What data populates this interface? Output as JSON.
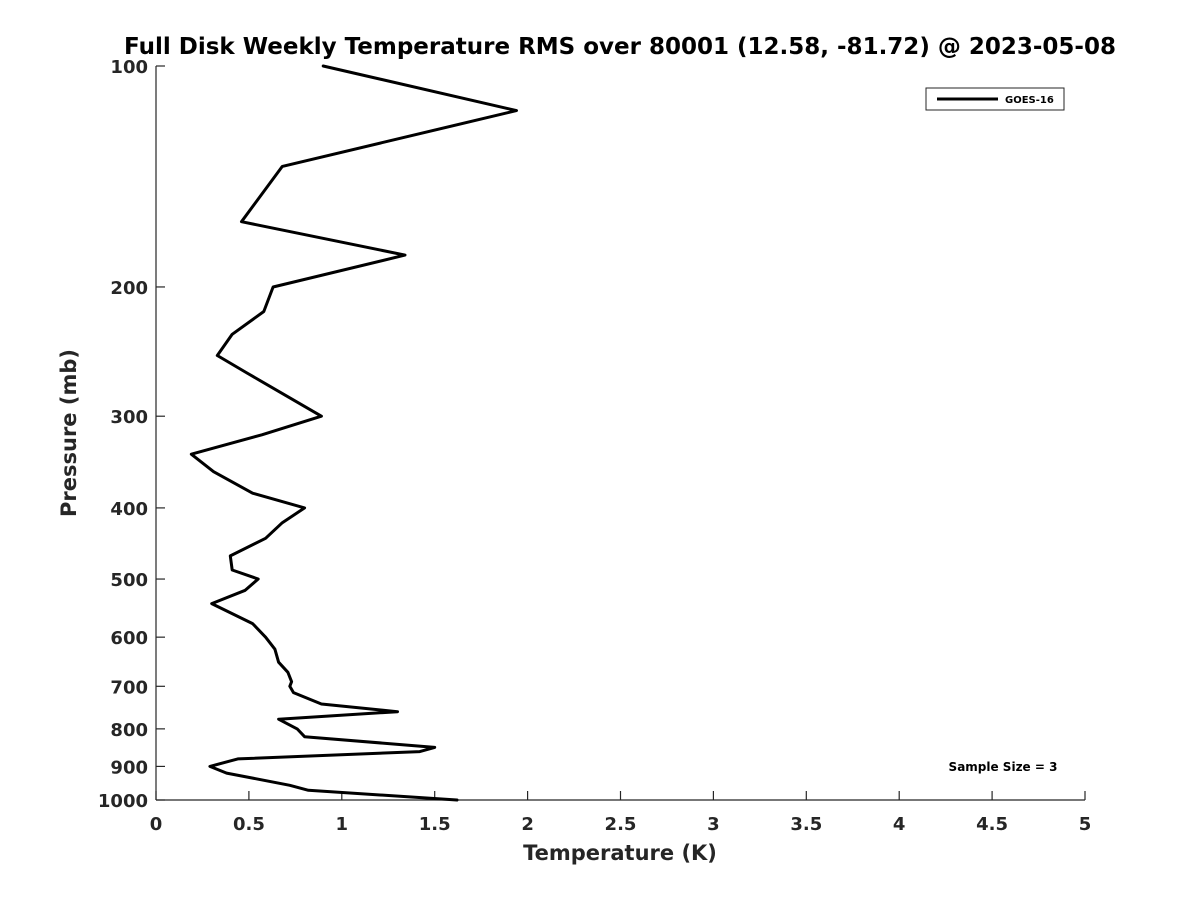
{
  "chart_data": {
    "type": "line",
    "title": "Full Disk Weekly Temperature RMS over 80001 (12.58, -81.72) @ 2023-05-08",
    "xlabel": "Temperature (K)",
    "ylabel": "Pressure (mb)",
    "xlim": [
      0,
      5
    ],
    "ylim": [
      100,
      1000
    ],
    "yscale": "log",
    "y_reversed": true,
    "xticks": [
      "0",
      "0.5",
      "1",
      "1.5",
      "2",
      "2.5",
      "3",
      "3.5",
      "4",
      "4.5",
      "5"
    ],
    "xtick_values": [
      0,
      0.5,
      1,
      1.5,
      2,
      2.5,
      3,
      3.5,
      4,
      4.5,
      5
    ],
    "yticks": [
      "100",
      "200",
      "300",
      "400",
      "500",
      "600",
      "700",
      "800",
      "900",
      "1000"
    ],
    "ytick_values": [
      100,
      200,
      300,
      400,
      500,
      600,
      700,
      800,
      900,
      1000
    ],
    "grid": false,
    "legend_position": "top-right",
    "series": [
      {
        "name": "GOES-16",
        "color": "#000000",
        "points": [
          [
            0.9,
            100
          ],
          [
            1.94,
            115
          ],
          [
            0.68,
            137
          ],
          [
            0.46,
            163
          ],
          [
            1.34,
            181
          ],
          [
            0.63,
            200
          ],
          [
            0.58,
            216
          ],
          [
            0.41,
            232
          ],
          [
            0.33,
            248
          ],
          [
            0.49,
            262
          ],
          [
            0.89,
            300
          ],
          [
            0.57,
            318
          ],
          [
            0.19,
            338
          ],
          [
            0.31,
            357
          ],
          [
            0.52,
            382
          ],
          [
            0.8,
            400
          ],
          [
            0.68,
            419
          ],
          [
            0.59,
            440
          ],
          [
            0.4,
            465
          ],
          [
            0.41,
            486
          ],
          [
            0.55,
            500
          ],
          [
            0.48,
            518
          ],
          [
            0.3,
            540
          ],
          [
            0.52,
            575
          ],
          [
            0.59,
            600
          ],
          [
            0.64,
            623
          ],
          [
            0.66,
            649
          ],
          [
            0.71,
            670
          ],
          [
            0.73,
            690
          ],
          [
            0.72,
            700
          ],
          [
            0.74,
            714
          ],
          [
            0.89,
            740
          ],
          [
            1.3,
            758
          ],
          [
            0.66,
            776
          ],
          [
            0.76,
            800
          ],
          [
            0.8,
            820
          ],
          [
            1.5,
            848
          ],
          [
            1.42,
            859
          ],
          [
            0.44,
            879
          ],
          [
            0.29,
            900
          ],
          [
            0.38,
            919
          ],
          [
            0.72,
            955
          ],
          [
            0.82,
            970
          ],
          [
            1.62,
            1000
          ]
        ]
      }
    ],
    "annotations": [
      "Sample Size = 3"
    ]
  }
}
